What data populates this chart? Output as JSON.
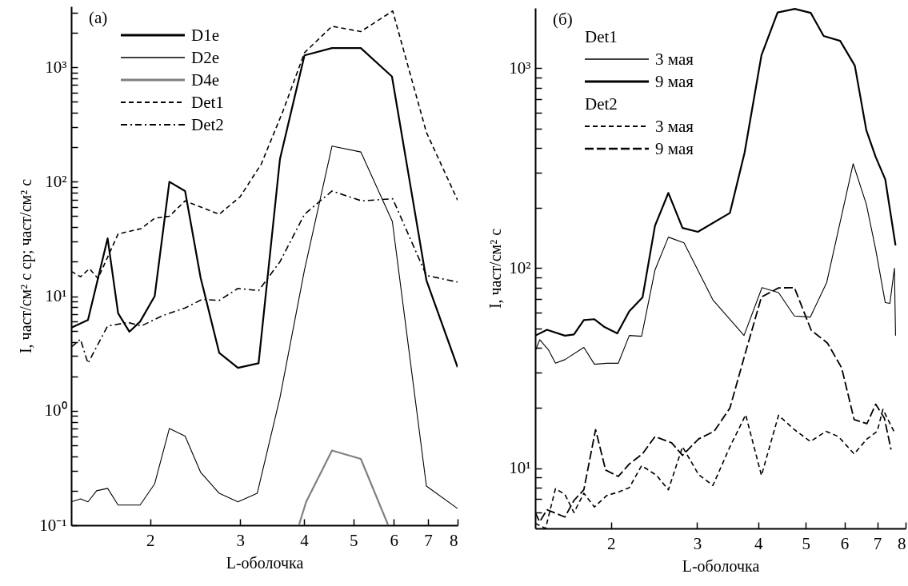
{
  "chart_data": [
    {
      "type": "line",
      "title": "(a)",
      "xlabel": "L-оболочка",
      "ylabel": "I, част/см² с ср; част/см² с",
      "log": "xy",
      "legend": "top left",
      "xlim": [
        1.4,
        8
      ],
      "ylim": [
        0.1,
        3400
      ],
      "xticks": [
        2,
        3,
        4,
        5,
        6,
        7,
        8
      ],
      "yticks": [
        {
          "value": 0.1,
          "label": "10⁻¹"
        },
        {
          "value": 0.2,
          "label": null
        },
        {
          "value": 0.3,
          "label": null
        },
        {
          "value": 0.4,
          "label": null
        },
        {
          "value": 0.5,
          "label": null
        },
        {
          "value": 0.6,
          "label": null
        },
        {
          "value": 0.7,
          "label": null
        },
        {
          "value": 0.8,
          "label": null
        },
        {
          "value": 0.9,
          "label": null
        },
        {
          "value": 1,
          "label": "10⁰"
        },
        {
          "value": 2,
          "label": null
        },
        {
          "value": 3,
          "label": null
        },
        {
          "value": 4,
          "label": null
        },
        {
          "value": 5,
          "label": null
        },
        {
          "value": 6,
          "label": null
        },
        {
          "value": 7,
          "label": null
        },
        {
          "value": 8,
          "label": null
        },
        {
          "value": 9,
          "label": null
        },
        {
          "value": 10,
          "label": "10¹"
        },
        {
          "value": 20,
          "label": null
        },
        {
          "value": 30,
          "label": null
        },
        {
          "value": 40,
          "label": null
        },
        {
          "value": 50,
          "label": null
        },
        {
          "value": 60,
          "label": null
        },
        {
          "value": 70,
          "label": null
        },
        {
          "value": 80,
          "label": null
        },
        {
          "value": 90,
          "label": null
        },
        {
          "value": 100,
          "label": "10²"
        },
        {
          "value": 200,
          "label": null
        },
        {
          "value": 300,
          "label": null
        },
        {
          "value": 400,
          "label": null
        },
        {
          "value": 500,
          "label": null
        },
        {
          "value": 600,
          "label": null
        },
        {
          "value": 700,
          "label": null
        },
        {
          "value": 800,
          "label": null
        },
        {
          "value": 900,
          "label": null
        },
        {
          "value": 1000,
          "label": "10³"
        },
        {
          "value": 2000,
          "label": null
        },
        {
          "value": 3000,
          "label": null
        }
      ],
      "series": [
        {
          "name": "D1e",
          "color": "#000000",
          "line_style": "solid",
          "x": [
            1.4,
            1.51,
            1.65,
            1.73,
            1.82,
            1.91,
            2.04,
            2.18,
            2.34,
            2.51,
            2.73,
            2.97,
            3.26,
            3.59,
            4.01,
            4.54,
            5.17,
            5.95,
            6.95,
            8.0
          ],
          "values": [
            5.3,
            6.2,
            32,
            7.1,
            4.9,
            6.0,
            10,
            100,
            83,
            14.5,
            3.2,
            2.37,
            2.6,
            158,
            1270,
            1470,
            1470,
            830,
            13.8,
            2.4
          ]
        },
        {
          "name": "D2e",
          "color": "#000000",
          "line_style": "solid",
          "x": [
            1.4,
            1.46,
            1.51,
            1.57,
            1.65,
            1.73,
            1.91,
            2.04,
            2.18,
            2.34,
            2.51,
            2.73,
            2.97,
            3.24,
            3.59,
            4.01,
            4.54,
            5.17,
            5.96,
            6.95,
            8.0
          ],
          "values": [
            0.16,
            0.17,
            0.16,
            0.2,
            0.21,
            0.15,
            0.15,
            0.23,
            0.7,
            0.6,
            0.29,
            0.19,
            0.16,
            0.19,
            1.3,
            17,
            205,
            182,
            45,
            0.22,
            0.14
          ]
        },
        {
          "name": "D4e",
          "color": "#808080",
          "line_style": "solid",
          "x": [
            3.91,
            4.04,
            4.54,
            5.17,
            5.85
          ],
          "values": [
            0.1,
            0.16,
            0.45,
            0.38,
            0.1
          ]
        },
        {
          "name": "Det1",
          "color": "#000000",
          "line_style": "dashed",
          "x": [
            1.4,
            1.46,
            1.52,
            1.58,
            1.73,
            1.92,
            2.04,
            2.18,
            2.34,
            2.73,
            3.0,
            3.3,
            3.64,
            4.01,
            4.54,
            5.17,
            5.97,
            6.95,
            8.0
          ],
          "values": [
            16.5,
            14.8,
            17.4,
            14.3,
            35,
            39,
            48,
            50,
            68,
            52,
            74,
            143,
            415,
            1340,
            2280,
            2050,
            3100,
            270,
            69
          ]
        },
        {
          "name": "Det2",
          "color": "#000000",
          "line_style": "dashdot",
          "x": [
            1.4,
            1.46,
            1.51,
            1.65,
            1.81,
            1.92,
            2.12,
            2.34,
            2.53,
            2.73,
            2.97,
            3.26,
            3.59,
            4.01,
            4.54,
            5.19,
            5.97,
            6.95,
            8.0
          ],
          "values": [
            3.6,
            4.2,
            2.6,
            5.5,
            5.9,
            5.5,
            6.8,
            7.9,
            9.4,
            9.2,
            11.7,
            11.2,
            20,
            52,
            83,
            68,
            71,
            15.2,
            13.3
          ]
        }
      ]
    },
    {
      "type": "line",
      "title": "(б)",
      "xlabel": "L-оболочка",
      "ylabel": "I, част/см² с",
      "log": "xy",
      "legend": "top left",
      "annotations": [
        "Det1",
        "Det2"
      ],
      "xlim": [
        1.4,
        8
      ],
      "ylim": [
        5,
        2000
      ],
      "xticks": [
        2,
        3,
        4,
        5,
        6,
        7,
        8
      ],
      "yticks": [
        {
          "value": 6,
          "label": null
        },
        {
          "value": 7,
          "label": null
        },
        {
          "value": 8,
          "label": null
        },
        {
          "value": 9,
          "label": null
        },
        {
          "value": 10,
          "label": "10¹"
        },
        {
          "value": 20,
          "label": null
        },
        {
          "value": 30,
          "label": null
        },
        {
          "value": 40,
          "label": null
        },
        {
          "value": 50,
          "label": null
        },
        {
          "value": 60,
          "label": null
        },
        {
          "value": 70,
          "label": null
        },
        {
          "value": 80,
          "label": null
        },
        {
          "value": 90,
          "label": null
        },
        {
          "value": 100,
          "label": "10²"
        },
        {
          "value": 200,
          "label": null
        },
        {
          "value": 300,
          "label": null
        },
        {
          "value": 400,
          "label": null
        },
        {
          "value": 500,
          "label": null
        },
        {
          "value": 600,
          "label": null
        },
        {
          "value": 700,
          "label": null
        },
        {
          "value": 800,
          "label": null
        },
        {
          "value": 900,
          "label": null
        },
        {
          "value": 1000,
          "label": "10³"
        }
      ],
      "series": [
        {
          "name": "3 мая",
          "color": "#000000",
          "line_style": "solid",
          "x": [
            1.4,
            1.43,
            1.49,
            1.54,
            1.61,
            1.76,
            1.85,
            1.96,
            2.07,
            2.18,
            2.31,
            2.46,
            2.62,
            2.82,
            3.23,
            3.74,
            4.07,
            4.4,
            4.74,
            5.11,
            5.52,
            6.25,
            6.65,
            6.95,
            7.27,
            7.43,
            7.59,
            7.63
          ],
          "values": [
            38.5,
            43.9,
            39.1,
            33.5,
            34.9,
            40.2,
            33.1,
            33.5,
            33.5,
            46.1,
            45.7,
            98,
            143,
            134,
            69.5,
            46.1,
            80,
            75.5,
            57.7,
            57,
            85,
            333,
            209,
            124,
            67.3,
            66.7,
            100,
            46
          ]
        },
        {
          "name": "9 мая",
          "color": "#000000",
          "line_style": "solid",
          "x": [
            1.4,
            1.48,
            1.61,
            1.68,
            1.76,
            1.85,
            1.94,
            2.06,
            2.18,
            2.32,
            2.46,
            2.62,
            2.8,
            3.01,
            3.5,
            3.75,
            4.06,
            4.38,
            4.75,
            5.12,
            5.44,
            5.88,
            6.3,
            6.65,
            6.95,
            7.27,
            7.63
          ],
          "values": [
            46,
            49.2,
            46,
            46.6,
            55,
            55.6,
            50.8,
            47.2,
            61,
            71.4,
            163,
            238,
            159,
            152,
            189,
            378,
            1160,
            1900,
            1980,
            1890,
            1450,
            1370,
            1030,
            490,
            360,
            278,
            130
          ]
        },
        {
          "name": "3 мая",
          "color": "#000000",
          "line_style": "dashed",
          "x": [
            1.4,
            1.47,
            1.54,
            1.61,
            1.68,
            1.76,
            1.85,
            1.96,
            2.07,
            2.18,
            2.31,
            2.48,
            2.62,
            2.8,
            3.02,
            3.23,
            3.5,
            3.77,
            4.06,
            4.4,
            4.74,
            5.11,
            5.5,
            5.83,
            6.28,
            6.67,
            7.0,
            7.19,
            7.59
          ],
          "values": [
            5.3,
            5.0,
            7.9,
            7.4,
            6.0,
            7.5,
            6.4,
            7.3,
            7.6,
            8.0,
            10.3,
            9.2,
            7.8,
            12.8,
            9.3,
            8.2,
            12.8,
            18.5,
            9.2,
            18.4,
            15.6,
            13.6,
            15.3,
            14.4,
            11.8,
            14.0,
            15.3,
            19.7,
            15.1
          ]
        },
        {
          "name": "9 мая",
          "color": "#000000",
          "line_style": "longdash",
          "x": [
            1.4,
            1.43,
            1.48,
            1.61,
            1.68,
            1.76,
            1.86,
            1.95,
            2.07,
            2.18,
            2.32,
            2.46,
            2.66,
            2.8,
            3.02,
            3.25,
            3.5,
            3.74,
            4.06,
            4.4,
            4.74,
            5.13,
            5.54,
            5.92,
            6.28,
            6.67,
            6.95,
            7.24,
            7.47
          ],
          "values": [
            6.0,
            5.4,
            6.2,
            5.7,
            6.9,
            7.8,
            15.6,
            9.8,
            9.1,
            10.5,
            11.8,
            14.4,
            13.4,
            11.6,
            14.0,
            15.3,
            20,
            35.7,
            71.8,
            79.7,
            80,
            49,
            42.2,
            31.8,
            17.5,
            16.7,
            20.9,
            17.8,
            12.4
          ]
        }
      ]
    }
  ]
}
